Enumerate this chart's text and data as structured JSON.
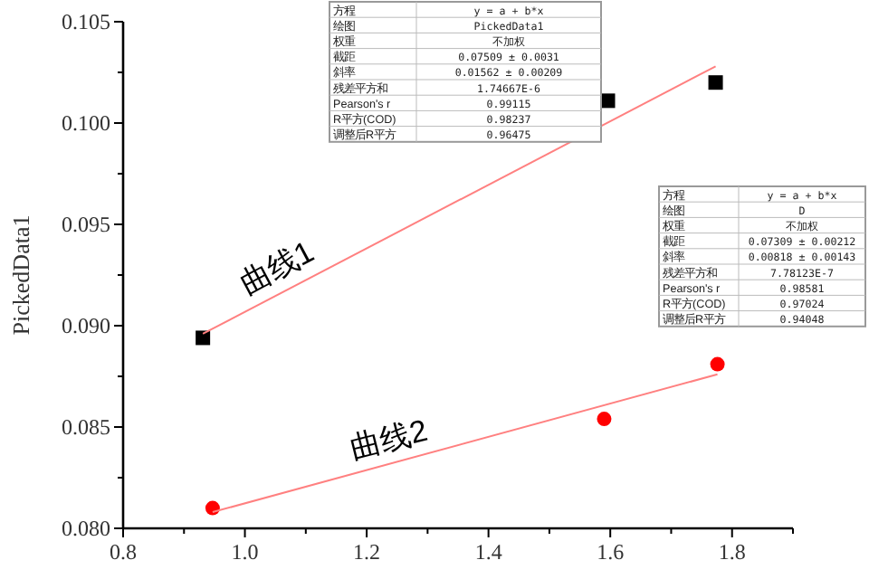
{
  "chart_data": {
    "type": "scatter",
    "ylabel": "PickedData1",
    "xlim": [
      0.8,
      1.9
    ],
    "ylim": [
      0.08,
      0.105
    ],
    "xticks": [
      0.8,
      {
        "value": 0.9,
        "label": null
      },
      {
        "value": 1.0,
        "label": "1.0"
      },
      {
        "value": 1.1,
        "label": null
      },
      1.2,
      {
        "value": 1.3,
        "label": null
      },
      1.4,
      {
        "value": 1.5,
        "label": null
      },
      1.6,
      {
        "value": 1.7,
        "label": null
      },
      1.8,
      {
        "value": 1.9,
        "label": null
      }
    ],
    "yticks": [
      {
        "value": 0.08,
        "label": "0.080"
      },
      {
        "value": 0.0825,
        "label": null
      },
      0.085,
      {
        "value": 0.0875,
        "label": null
      },
      {
        "value": 0.09,
        "label": "0.090"
      },
      {
        "value": 0.0925,
        "label": null
      },
      0.095,
      {
        "value": 0.0975,
        "label": null
      },
      {
        "value": 0.1,
        "label": "0.100"
      },
      {
        "value": 0.1025,
        "label": null
      },
      0.105
    ],
    "grid": false,
    "series": [
      {
        "marker": "square",
        "color": "#000000",
        "x": [
          0.931,
          1.596,
          1.773
        ],
        "values": [
          0.0894,
          0.1011,
          0.102
        ]
      },
      {
        "marker": "circle",
        "color": "#ff0000",
        "x": [
          0.947,
          1.59,
          1.776
        ],
        "values": [
          0.081,
          0.0854,
          0.0881
        ]
      },
      {
        "type": "line",
        "color": "#ff8080",
        "x": [
          0.931,
          1.773
        ],
        "values": [
          0.0896,
          0.1028
        ]
      },
      {
        "type": "line",
        "color": "#ff8080",
        "x": [
          0.947,
          1.776
        ],
        "values": [
          0.0808,
          0.0876
        ]
      }
    ],
    "annotations": [
      {
        "text": "曲线1",
        "x": 1.06,
        "y": 0.0917
      },
      {
        "text": "曲线2",
        "x": 1.24,
        "y": 0.0832
      },
      "方程",
      "y = a + b*x",
      "绘图",
      "PickedData1",
      "权重",
      "不加权",
      "截距",
      "0.07509 ± 0.0031",
      "斜率",
      "0.01562 ± 0.00209",
      "残差平方和",
      "1.74667E-6",
      "Pearson's r",
      "0.99115",
      "R平方(COD)",
      "0.98237",
      "调整后R平方",
      "0.96475",
      "方程",
      "y = a + b*x",
      "绘图",
      "D",
      "权重",
      "不加权",
      "截距",
      "0.07309 ± 0.00212",
      "斜率",
      "0.00818 ± 0.00143",
      "残差平方和",
      "7.78123E-7",
      "Pearson's r",
      "0.98581",
      "R平方(COD)",
      "0.97024",
      "调整后R平方",
      "0.94048"
    ]
  }
}
